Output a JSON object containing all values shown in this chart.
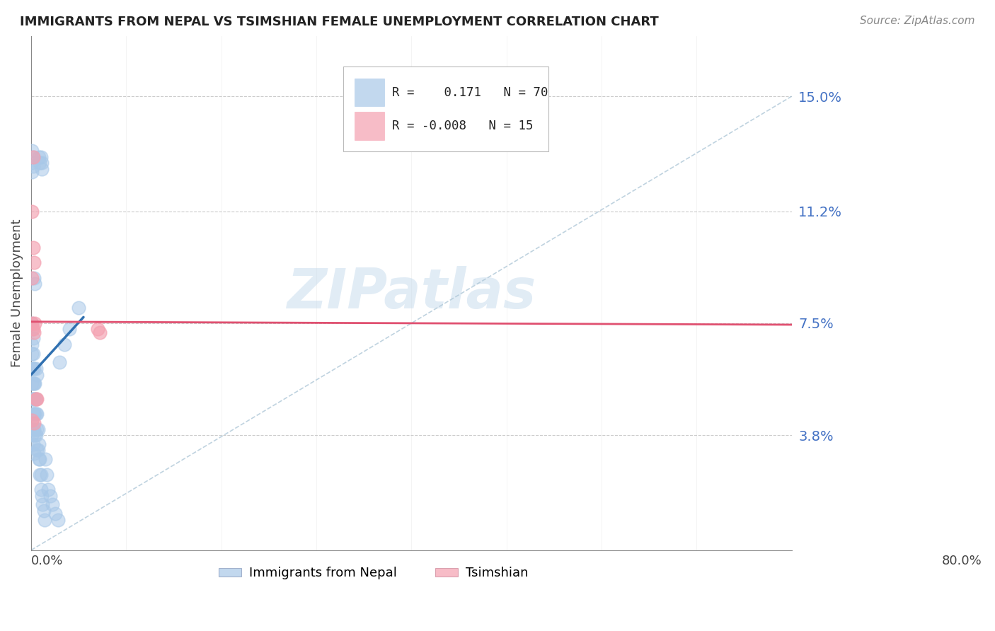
{
  "title": "IMMIGRANTS FROM NEPAL VS TSIMSHIAN FEMALE UNEMPLOYMENT CORRELATION CHART",
  "source": "Source: ZipAtlas.com",
  "ylabel": "Female Unemployment",
  "ytick_labels": [
    "15.0%",
    "11.2%",
    "7.5%",
    "3.8%"
  ],
  "ytick_values": [
    0.15,
    0.112,
    0.075,
    0.038
  ],
  "xlim": [
    0.0,
    0.8
  ],
  "ylim": [
    0.0,
    0.17
  ],
  "nepal_color": "#A8C8E8",
  "tsimshian_color": "#F4A0B0",
  "nepal_line_color": "#3070B0",
  "tsimshian_line_color": "#E05070",
  "diag_line_color": "#B0C8D8",
  "watermark": "ZIPatlas",
  "background_color": "#FFFFFF",
  "grid_color": "#C0C0C0",
  "nepal_x": [
    0.001,
    0.001,
    0.001,
    0.001,
    0.001,
    0.001,
    0.001,
    0.001,
    0.001,
    0.002,
    0.002,
    0.002,
    0.002,
    0.002,
    0.002,
    0.002,
    0.002,
    0.003,
    0.003,
    0.003,
    0.003,
    0.003,
    0.003,
    0.004,
    0.004,
    0.004,
    0.004,
    0.005,
    0.005,
    0.005,
    0.006,
    0.006,
    0.006,
    0.007,
    0.007,
    0.008,
    0.008,
    0.009,
    0.009,
    0.01,
    0.01,
    0.011,
    0.012,
    0.013,
    0.014,
    0.015,
    0.016,
    0.018,
    0.02,
    0.022,
    0.025,
    0.028,
    0.001,
    0.001,
    0.001,
    0.002,
    0.002,
    0.008,
    0.009,
    0.01,
    0.011,
    0.011,
    0.003,
    0.004,
    0.005,
    0.006,
    0.03,
    0.035,
    0.04,
    0.05
  ],
  "nepal_y": [
    0.075,
    0.073,
    0.068,
    0.065,
    0.06,
    0.055,
    0.05,
    0.042,
    0.038,
    0.07,
    0.065,
    0.06,
    0.055,
    0.05,
    0.045,
    0.04,
    0.035,
    0.06,
    0.055,
    0.05,
    0.045,
    0.04,
    0.032,
    0.055,
    0.05,
    0.045,
    0.038,
    0.05,
    0.045,
    0.038,
    0.045,
    0.04,
    0.033,
    0.04,
    0.033,
    0.035,
    0.03,
    0.03,
    0.025,
    0.025,
    0.02,
    0.018,
    0.015,
    0.013,
    0.01,
    0.03,
    0.025,
    0.02,
    0.018,
    0.015,
    0.012,
    0.01,
    0.132,
    0.128,
    0.125,
    0.13,
    0.127,
    0.13,
    0.128,
    0.13,
    0.128,
    0.126,
    0.09,
    0.088,
    0.06,
    0.058,
    0.062,
    0.068,
    0.073,
    0.08
  ],
  "tsimshian_x": [
    0.001,
    0.001,
    0.001,
    0.002,
    0.002,
    0.003,
    0.003,
    0.004,
    0.005,
    0.006,
    0.07,
    0.072,
    0.001,
    0.002,
    0.003
  ],
  "tsimshian_y": [
    0.112,
    0.09,
    0.043,
    0.13,
    0.1,
    0.095,
    0.042,
    0.075,
    0.05,
    0.05,
    0.073,
    0.072,
    0.075,
    0.073,
    0.072
  ],
  "nepal_line_x": [
    0.0,
    0.055
  ],
  "nepal_line_y": [
    0.06,
    0.075
  ],
  "tsimshian_line_y": 0.075
}
